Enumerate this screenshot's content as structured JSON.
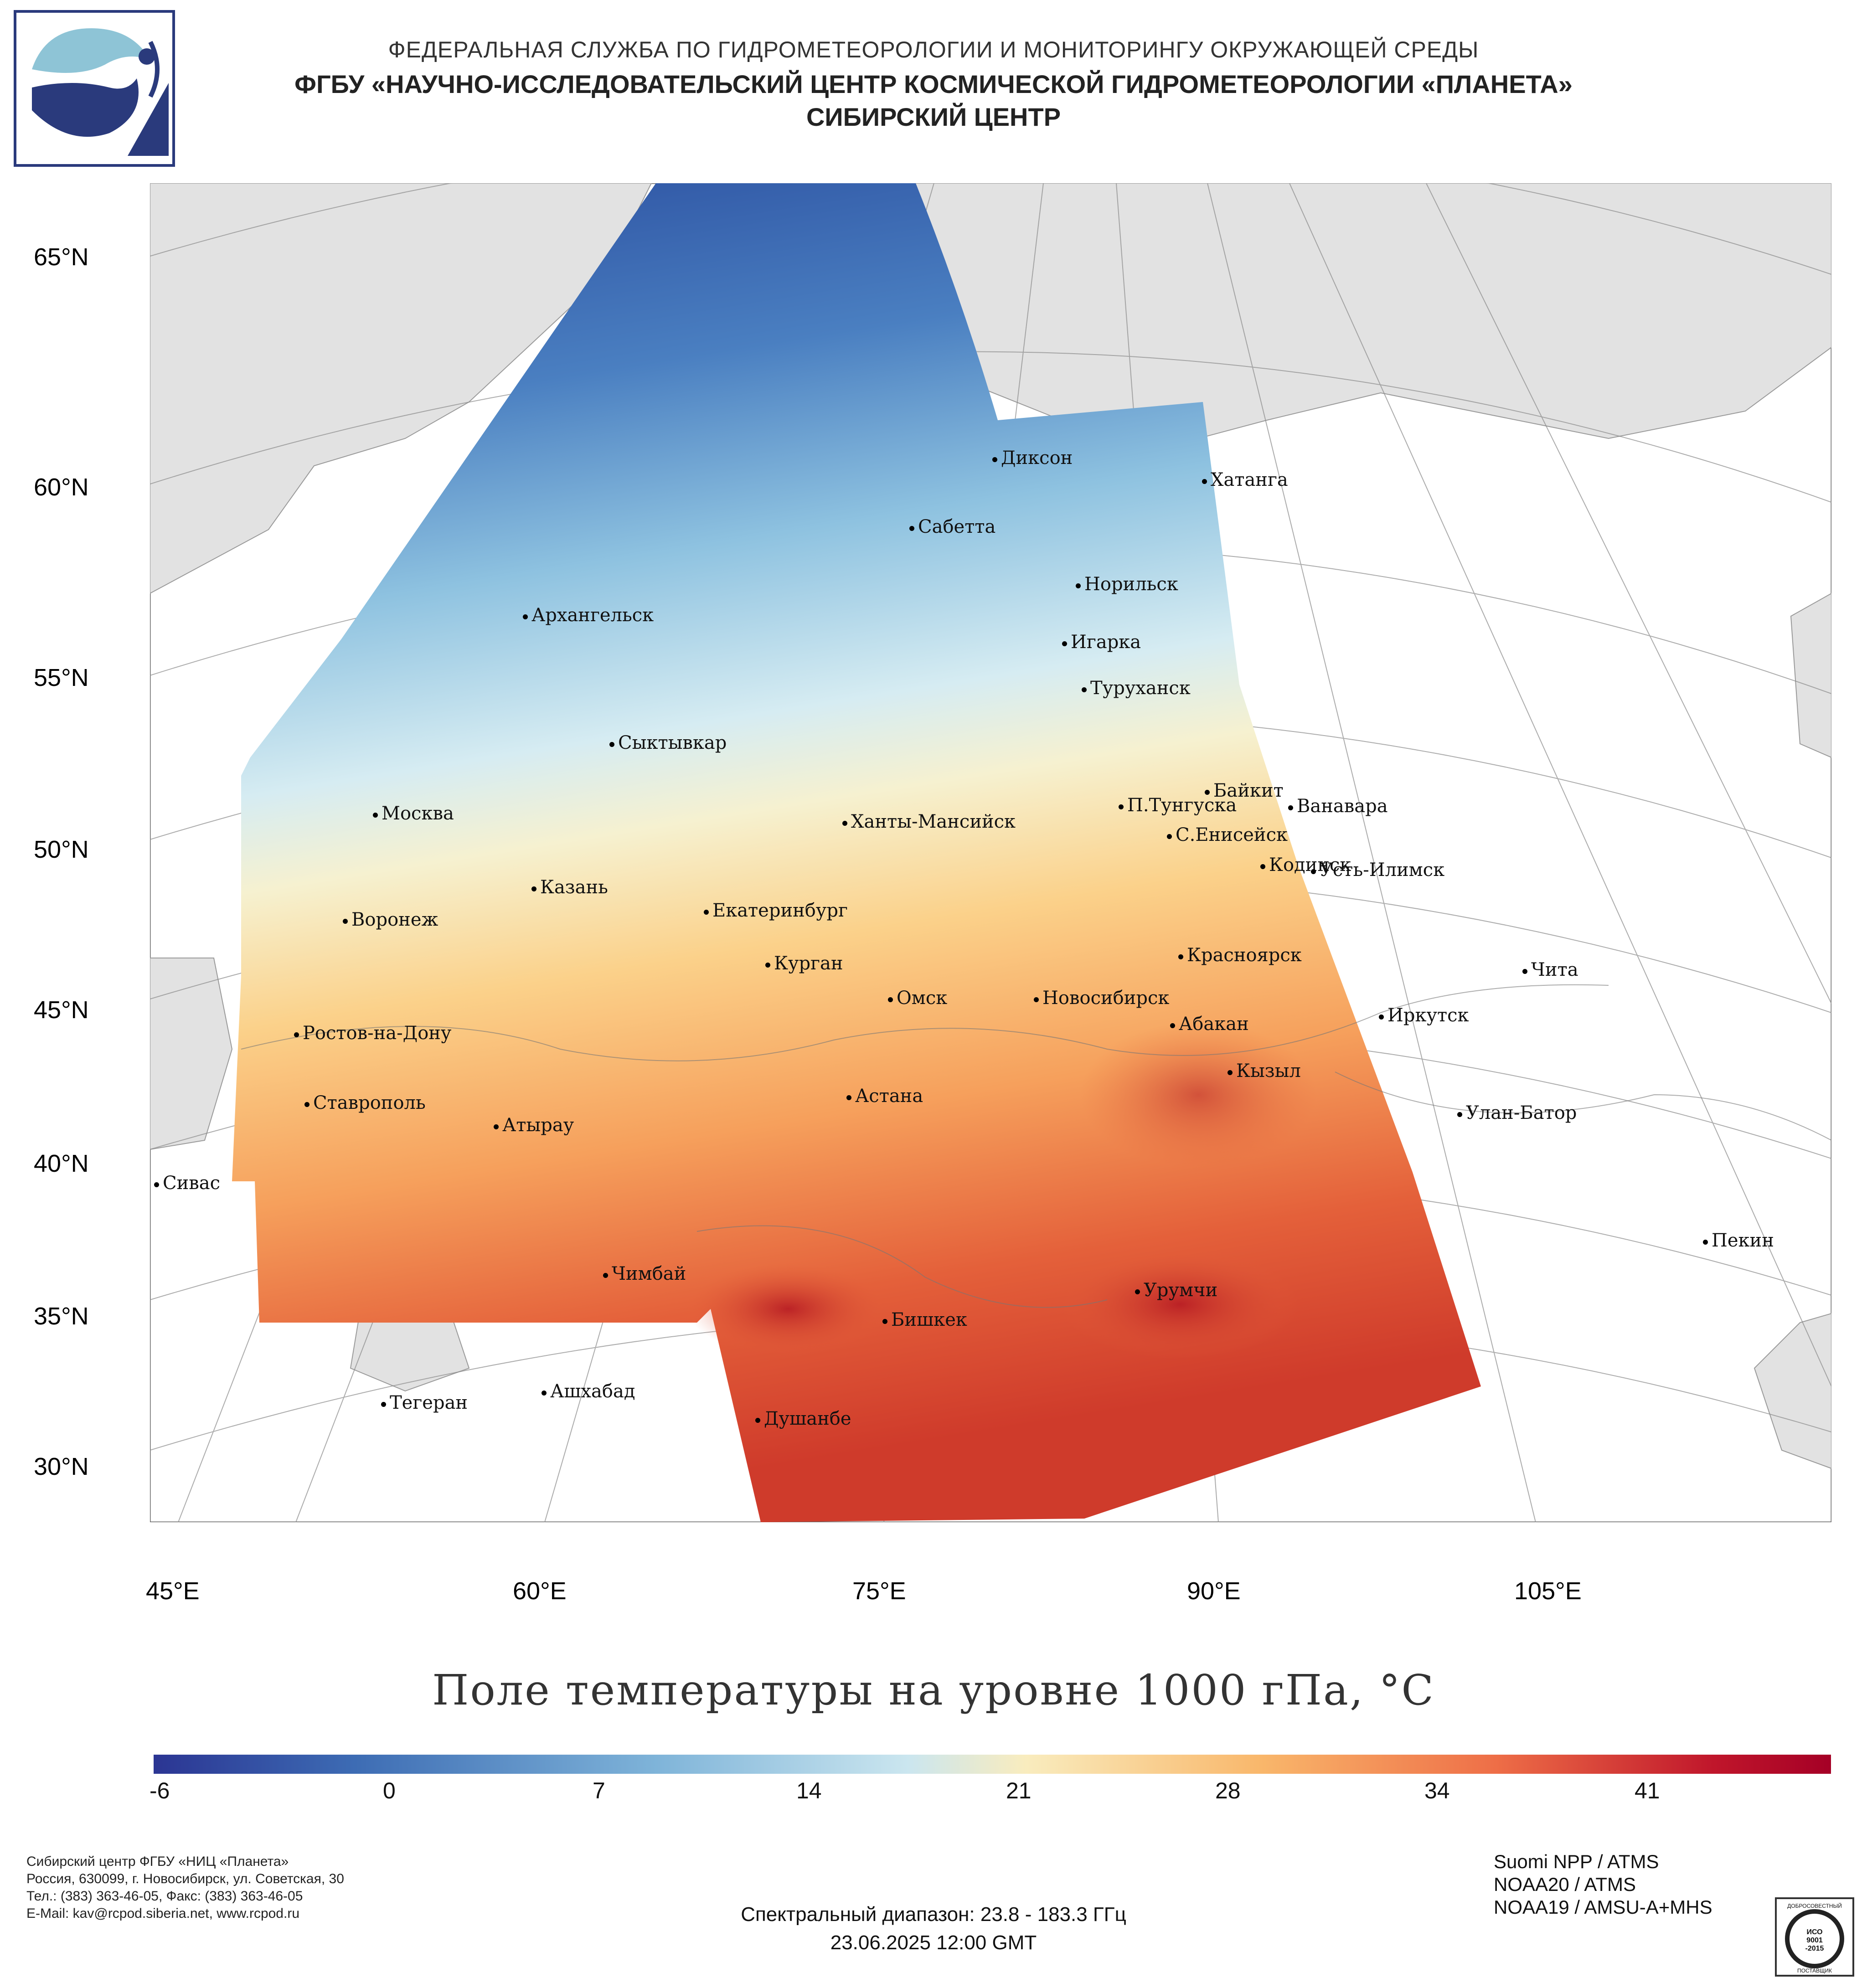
{
  "header": {
    "line1": "ФЕДЕРАЛЬНАЯ СЛУЖБА ПО ГИДРОМЕТЕОРОЛОГИИ И МОНИТОРИНГУ ОКРУЖАЮЩЕЙ СРЕДЫ",
    "line2": "ФГБУ «НАУЧНО-ИССЛЕДОВАТЕЛЬСКИЙ ЦЕНТР КОСМИЧЕСКОЙ ГИДРОМЕТЕОРОЛОГИИ «ПЛАНЕТА»",
    "line3": "СИБИРСКИЙ ЦЕНТР"
  },
  "logo": {
    "name": "planeta-logo",
    "colors": [
      "#2a3a7c",
      "#8ec4d6"
    ]
  },
  "map": {
    "title": "Поле температуры на уровне 1000 гПа, °С",
    "lat_labels": [
      "65°N",
      "60°N",
      "55°N",
      "50°N",
      "45°N",
      "40°N",
      "35°N",
      "30°N"
    ],
    "lon_labels": [
      "45°E",
      "60°E",
      "75°E",
      "90°E",
      "105°E"
    ],
    "cities": [
      "Диксон",
      "Хатанга",
      "Сабетта",
      "Норильск",
      "Архангельск",
      "Игарка",
      "Туруханск",
      "Сыктывкар",
      "Байкит",
      "П.Тунгуска",
      "Ванавара",
      "Москва",
      "Ханты-Мансийск",
      "С.Енисейск",
      "Кодинск",
      "Усть-Илимск",
      "Казань",
      "Екатеринбург",
      "Воронеж",
      "Красноярск",
      "Курган",
      "Омск",
      "Новосибирск",
      "Чита",
      "Ростов-на-Дону",
      "Абакан",
      "Иркутск",
      "Кызыл",
      "Ставрополь",
      "Астана",
      "Улан-Батор",
      "Атырау",
      "Сивас",
      "Пекин",
      "Чимбай",
      "Урумчи",
      "Бишкек",
      "Ашхабад",
      "Тегеран",
      "Душанбе"
    ],
    "colors": {
      "cold": "#2b4fa0",
      "mid": "#f6f1d0",
      "hot": "#c62a2a",
      "land": "#e2e2e2"
    }
  },
  "colorbar": {
    "ticks": [
      "-6",
      "0",
      "7",
      "14",
      "21",
      "28",
      "34",
      "41"
    ],
    "min": -6,
    "max": 47,
    "colors": [
      "#2b3593",
      "#3d6cb4",
      "#7fb4d9",
      "#cbe6ef",
      "#f9ecbe",
      "#f9b76b",
      "#ee6e47",
      "#c0162b",
      "#a50026"
    ]
  },
  "footer": {
    "left_lines": [
      "Сибирский центр ФГБУ «НИЦ «Планета»",
      "Россия, 630099, г. Новосибирск, ул. Советская, 30",
      "Тел.: (383) 363-46-05, Факс: (383) 363-46-05",
      "E-Mail: kav@rcpod.siberia.net, www.rcpod.ru"
    ],
    "spectral": "Спектральный диапазон: 23.8 - 183.3 ГГц",
    "datetime": "23.06.2025 12:00 GMT",
    "sensors": [
      "Suomi NPP / ATMS",
      "NOAA20 / ATMS",
      "NOAA19 / AMSU-A+MHS"
    ]
  }
}
